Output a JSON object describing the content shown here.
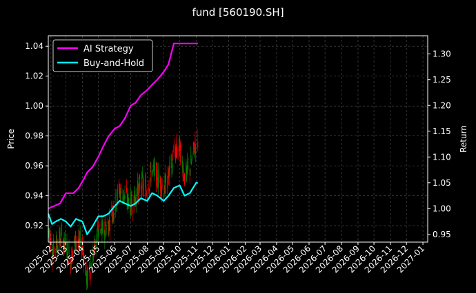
{
  "chart_data": {
    "type": "line",
    "title": "fund [560190.SH]",
    "ylabel_left": "Price",
    "ylabel_right": "Return",
    "x_ticks": [
      "2025-02",
      "2025-03",
      "2025-04",
      "2025-05",
      "2025-06",
      "2025-07",
      "2025-08",
      "2025-09",
      "2025-10",
      "2025-11",
      "2025-12",
      "2026-01",
      "2026-02",
      "2026-03",
      "2026-04",
      "2026-05",
      "2026-06",
      "2026-07",
      "2026-08",
      "2026-09",
      "2026-10",
      "2026-11",
      "2026-12",
      "2027-01"
    ],
    "xlim": [
      "2025-01-27",
      "2027-01-10"
    ],
    "y_left_ticks": [
      "0.92",
      "0.94",
      "0.96",
      "0.98",
      "1.00",
      "1.02",
      "1.04"
    ],
    "ylim_left": [
      0.909,
      1.047
    ],
    "y_right_ticks": [
      "0.95",
      "1.00",
      "1.05",
      "1.10",
      "1.15",
      "1.20",
      "1.25",
      "1.30"
    ],
    "ylim_right": [
      0.935,
      1.335
    ],
    "grid": true,
    "legend_position": "top-left",
    "colors": {
      "background": "#000000",
      "ai_strategy": "#ff00ff",
      "buy_and_hold": "#00ffff",
      "candle_up": "#008000",
      "candle_down": "#ff0000",
      "grid": "#555555"
    },
    "series": [
      {
        "name": "AI Strategy",
        "axis": "right",
        "x": [
          "2025-01-27",
          "2025-02-07",
          "2025-02-18",
          "2025-03-01",
          "2025-03-08",
          "2025-03-15",
          "2025-03-25",
          "2025-04-05",
          "2025-04-10",
          "2025-04-20",
          "2025-05-01",
          "2025-05-10",
          "2025-05-20",
          "2025-06-01",
          "2025-06-10",
          "2025-06-20",
          "2025-07-01",
          "2025-07-10",
          "2025-07-20",
          "2025-08-01",
          "2025-08-10",
          "2025-08-20",
          "2025-09-01",
          "2025-09-10",
          "2025-09-20",
          "2025-10-01",
          "2025-10-10",
          "2025-10-20",
          "2025-11-01",
          "2025-11-04"
        ],
        "values": [
          1.0,
          1.005,
          1.01,
          1.03,
          1.03,
          1.03,
          1.04,
          1.06,
          1.07,
          1.08,
          1.1,
          1.12,
          1.14,
          1.155,
          1.16,
          1.175,
          1.2,
          1.205,
          1.22,
          1.23,
          1.24,
          1.25,
          1.265,
          1.28,
          1.32,
          1.32,
          1.32,
          1.32,
          1.32,
          1.32
        ]
      },
      {
        "name": "Buy-and-Hold",
        "axis": "right",
        "x": [
          "2025-01-27",
          "2025-02-03",
          "2025-02-10",
          "2025-02-20",
          "2025-03-01",
          "2025-03-10",
          "2025-03-20",
          "2025-04-01",
          "2025-04-10",
          "2025-04-20",
          "2025-05-01",
          "2025-05-10",
          "2025-05-20",
          "2025-06-01",
          "2025-06-10",
          "2025-06-20",
          "2025-07-01",
          "2025-07-10",
          "2025-07-20",
          "2025-08-01",
          "2025-08-10",
          "2025-08-20",
          "2025-09-01",
          "2025-09-10",
          "2025-09-20",
          "2025-10-01",
          "2025-10-10",
          "2025-10-20",
          "2025-11-01",
          "2025-11-04"
        ],
        "values": [
          0.99,
          0.97,
          0.975,
          0.98,
          0.975,
          0.965,
          0.98,
          0.975,
          0.95,
          0.965,
          0.985,
          0.985,
          0.99,
          1.005,
          1.015,
          1.01,
          1.005,
          1.01,
          1.02,
          1.015,
          1.03,
          1.025,
          1.015,
          1.025,
          1.04,
          1.045,
          1.025,
          1.03,
          1.05,
          1.05
        ]
      }
    ]
  }
}
